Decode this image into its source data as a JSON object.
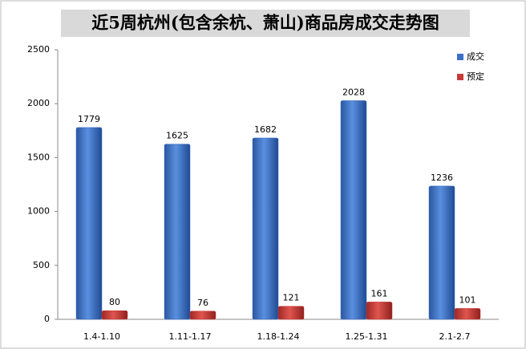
{
  "chart_data": {
    "type": "bar",
    "title": "近5周杭州(包含余杭、萧山)商品房成交走势图",
    "categories": [
      "1.4-1.10",
      "1.11-1.17",
      "1.18-1.24",
      "1.25-1.31",
      "2.1-2.7"
    ],
    "series": [
      {
        "name": "成交",
        "color": "#3b6fc6",
        "values": [
          1779,
          1625,
          1682,
          2028,
          1236
        ]
      },
      {
        "name": "预定",
        "color": "#c83a35",
        "values": [
          80,
          76,
          121,
          161,
          101
        ]
      }
    ],
    "ylim": [
      0,
      2500
    ],
    "yticks": [
      0,
      500,
      1000,
      1500,
      2000,
      2500
    ],
    "grid": false,
    "legend": "top-right"
  }
}
